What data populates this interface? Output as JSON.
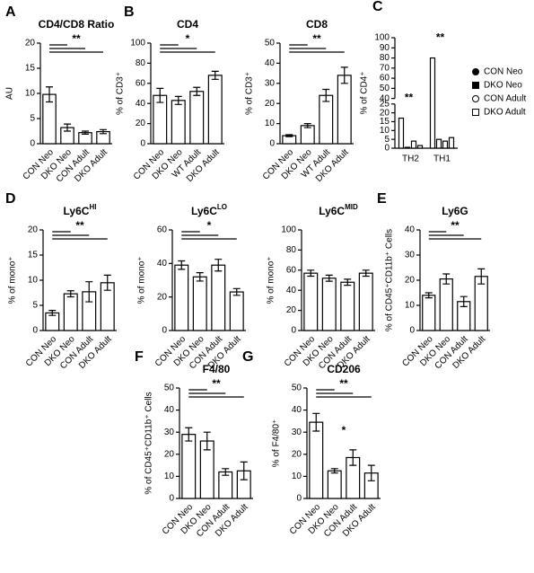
{
  "chart_data": [
    {
      "type": "bar",
      "panel": "A",
      "title": "CD4/CD8 Ratio",
      "ylabel": "AU",
      "categories": [
        "CON Neo",
        "DKO Neo",
        "CON Adult",
        "DKO Adult"
      ],
      "values": [
        9.8,
        3.2,
        2.2,
        2.4
      ],
      "errors": [
        1.5,
        0.7,
        0.3,
        0.4
      ],
      "ylim": [
        0,
        20
      ],
      "yticks": [
        0,
        5,
        10,
        15,
        20
      ],
      "annotation": "**"
    },
    {
      "type": "bar",
      "panel": "B",
      "title": "CD4",
      "ylabel": "% of CD3⁺",
      "categories": [
        "CON Neo",
        "DKO Neo",
        "WT Adult",
        "DKO Adult"
      ],
      "values": [
        48,
        43,
        52,
        68
      ],
      "errors": [
        7,
        4,
        4,
        4
      ],
      "ylim": [
        0,
        100
      ],
      "yticks": [
        0,
        20,
        40,
        60,
        80,
        100
      ],
      "annotation": "*"
    },
    {
      "type": "bar",
      "title": "CD8",
      "ylabel": "% of CD3⁺",
      "categories": [
        "CON Neo",
        "DKO Neo",
        "WT Adult",
        "DKO Adult"
      ],
      "values": [
        4,
        9,
        24,
        34
      ],
      "errors": [
        0.5,
        1,
        3,
        4
      ],
      "ylim": [
        0,
        50
      ],
      "yticks": [
        0,
        10,
        20,
        30,
        40,
        50
      ],
      "annotation": "**"
    },
    {
      "type": "grouped_bar",
      "panel": "C",
      "ylabel": "% of CD4⁺",
      "categories": [
        "TH2",
        "TH1"
      ],
      "ylim": [
        0,
        100
      ],
      "ybreak": [
        25,
        40
      ],
      "yticks": [
        0,
        5,
        10,
        15,
        20,
        25,
        40,
        50,
        60,
        70,
        80,
        90,
        100
      ],
      "series": [
        {
          "name": "CON Neo",
          "marker": "filled-circle",
          "values": [
            17,
            80
          ]
        },
        {
          "name": "DKO Neo",
          "marker": "filled-square",
          "values": [
            0.5,
            5
          ]
        },
        {
          "name": "CON Adult",
          "marker": "open-circle",
          "values": [
            4,
            4
          ]
        },
        {
          "name": "DKO Adult",
          "marker": "open-square",
          "values": [
            1.5,
            6
          ]
        }
      ],
      "annotations": [
        "**",
        "**"
      ]
    },
    {
      "type": "bar",
      "panel": "D",
      "title": "Ly6C",
      "title_sup": "HI",
      "ylabel": "% of mono⁺",
      "categories": [
        "CON Neo",
        "DKO Neo",
        "CON Adult",
        "DKO Adult"
      ],
      "values": [
        3.5,
        7.3,
        7.7,
        9.5
      ],
      "errors": [
        0.5,
        0.6,
        2,
        1.5
      ],
      "ylim": [
        0,
        20
      ],
      "yticks": [
        0,
        5,
        10,
        15,
        20
      ],
      "annotation": "**"
    },
    {
      "type": "bar",
      "title": "Ly6C",
      "title_sup": "LO",
      "ylabel": "% of mono⁺",
      "categories": [
        "CON Neo",
        "DKO Neo",
        "CON Adult",
        "DKO Adult"
      ],
      "values": [
        39,
        32,
        39,
        23
      ],
      "errors": [
        2.5,
        2.5,
        3.5,
        2
      ],
      "ylim": [
        0,
        60
      ],
      "yticks": [
        0,
        20,
        40,
        60
      ],
      "annotation": "*"
    },
    {
      "type": "bar",
      "title": "Ly6C",
      "title_sup": "MID",
      "ylabel": "% of mono⁺",
      "categories": [
        "CON Neo",
        "DKO Neo",
        "CON Adult",
        "DKO Adult"
      ],
      "values": [
        57,
        52,
        48,
        57
      ],
      "errors": [
        3,
        3,
        3,
        3
      ],
      "ylim": [
        0,
        100
      ],
      "yticks": [
        0,
        20,
        40,
        60,
        80,
        100
      ]
    },
    {
      "type": "bar",
      "panel": "E",
      "title": "Ly6G",
      "ylabel": "% of CD45⁺CD11b⁺ Cells",
      "categories": [
        "CON Neo",
        "DKO Neo",
        "CON Adult",
        "DKO Adult"
      ],
      "values": [
        14,
        20.5,
        11.5,
        21.5
      ],
      "errors": [
        1,
        2,
        2,
        3
      ],
      "ylim": [
        0,
        40
      ],
      "yticks": [
        0,
        10,
        20,
        30,
        40
      ],
      "annotation": "**"
    },
    {
      "type": "bar",
      "panel": "F",
      "title": "F4/80",
      "ylabel": "% of CD45⁺CD11b⁺ Cells",
      "categories": [
        "CON Neo",
        "DKO Neo",
        "CON Adult",
        "DKO Adult"
      ],
      "values": [
        29,
        26,
        12,
        12.5
      ],
      "errors": [
        3,
        4,
        1.5,
        4
      ],
      "ylim": [
        0,
        50
      ],
      "yticks": [
        0,
        10,
        20,
        30,
        40,
        50
      ],
      "annotation": "**"
    },
    {
      "type": "bar",
      "panel": "G",
      "title": "CD206",
      "ylabel": "% of F4/80⁺",
      "categories": [
        "CON Neo",
        "DKO Neo",
        "CON Adult",
        "DKO Adult"
      ],
      "values": [
        34.5,
        12.5,
        18.5,
        11.5
      ],
      "errors": [
        4,
        1,
        3.5,
        3.5
      ],
      "ylim": [
        0,
        50
      ],
      "yticks": [
        0,
        10,
        20,
        30,
        40,
        50
      ],
      "annotation": "**",
      "annotation2": "*"
    }
  ]
}
